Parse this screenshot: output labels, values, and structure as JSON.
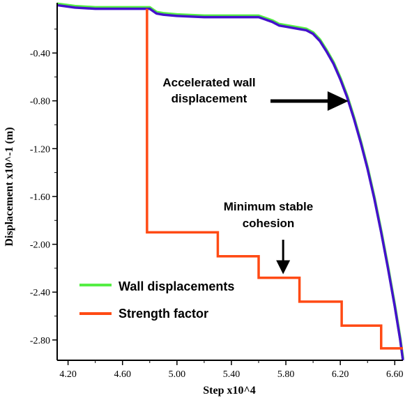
{
  "chart_data": {
    "type": "line",
    "title": "",
    "xlabel": "Step x10^4",
    "ylabel": "Displacement x10^-1 (m)",
    "xlim": [
      4.12,
      6.66
    ],
    "ylim": [
      -2.97,
      0.02
    ],
    "xticks": [
      "4.20",
      "4.60",
      "5.00",
      "5.40",
      "5.80",
      "6.20",
      "6.60"
    ],
    "yticks": [
      "-0.40",
      "-0.80",
      "-1.20",
      "-1.60",
      "-2.00",
      "-2.40",
      "-2.80"
    ],
    "legend": {
      "position": "bottom-left"
    },
    "colors": {
      "wall_green": "#55ee44",
      "wall_blue": "#4411cc",
      "strength": "#ff4a14",
      "axis": "#000000"
    },
    "series": [
      {
        "name": "Wall displacements",
        "x": [
          4.12,
          4.25,
          4.4,
          4.6,
          4.8,
          4.85,
          4.9,
          5.0,
          5.2,
          5.4,
          5.6,
          5.7,
          5.75,
          5.8,
          5.9,
          5.95,
          6.0,
          6.05,
          6.1,
          6.15,
          6.2,
          6.25,
          6.3,
          6.35,
          6.4,
          6.45,
          6.5,
          6.55,
          6.6,
          6.64,
          6.66
        ],
        "y": [
          0.0,
          -0.02,
          -0.03,
          -0.03,
          -0.03,
          -0.07,
          -0.08,
          -0.09,
          -0.1,
          -0.1,
          -0.1,
          -0.14,
          -0.17,
          -0.18,
          -0.2,
          -0.21,
          -0.24,
          -0.3,
          -0.39,
          -0.49,
          -0.62,
          -0.77,
          -0.95,
          -1.15,
          -1.37,
          -1.62,
          -1.9,
          -2.2,
          -2.52,
          -2.8,
          -2.97
        ]
      },
      {
        "name": "Strength factor",
        "x": [
          4.78,
          4.78,
          5.3,
          5.3,
          5.6,
          5.6,
          5.9,
          5.9,
          6.21,
          6.21,
          6.5,
          6.5,
          6.66
        ],
        "y": [
          -0.03,
          -1.9,
          -1.9,
          -2.1,
          -2.1,
          -2.28,
          -2.28,
          -2.48,
          -2.48,
          -2.68,
          -2.68,
          -2.87,
          -2.87
        ]
      }
    ],
    "annotations": [
      {
        "lines": [
          "Accelerated wall",
          "displacement"
        ],
        "arrow_to": {
          "x": 6.26,
          "y": -0.79
        }
      },
      {
        "lines": [
          "Minimum stable",
          "cohesion"
        ],
        "arrow_to": {
          "x": 5.78,
          "y": -2.25
        }
      }
    ]
  }
}
